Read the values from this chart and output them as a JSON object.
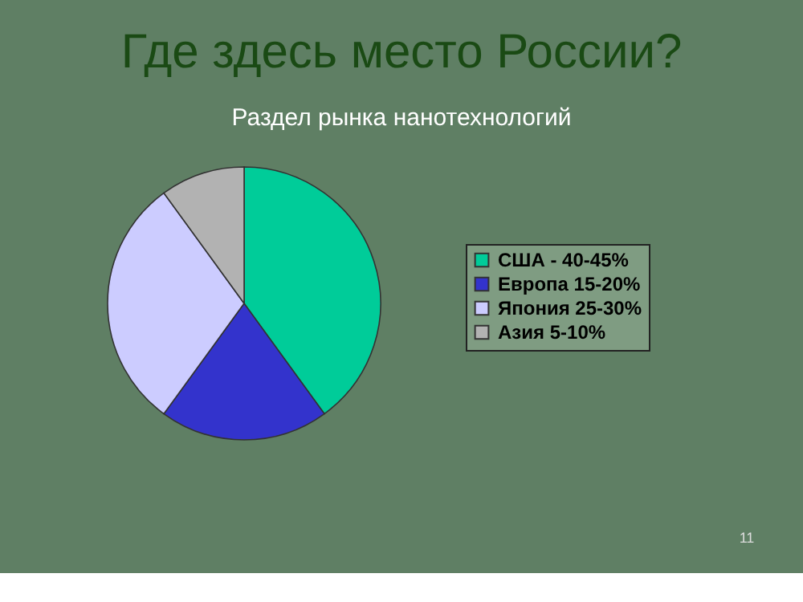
{
  "chart_data": {
    "type": "pie",
    "title": "Где здесь место России?",
    "subtitle": "Раздел рынка нанотехнологий",
    "categories": [
      "США - 40-45%",
      "Европа 15-20%",
      "Япония 25-30%",
      "Азия 5-10%"
    ],
    "values": [
      40,
      20,
      30,
      10
    ],
    "colors": [
      "#00cc99",
      "#3333cc",
      "#ccccff",
      "#b2b2b2"
    ],
    "legend": "right",
    "annotations": [
      "11"
    ]
  }
}
